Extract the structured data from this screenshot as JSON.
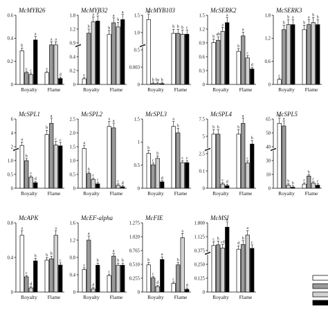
{
  "colors": {
    "s1": "#ffffff",
    "s2": "#9a9a9a",
    "s3": "#d2d2d2",
    "s4": "#000000",
    "stroke": "#111111"
  },
  "chart_data": [
    {
      "type": "bar",
      "title": "McMYB26",
      "categories": [
        "Royalty",
        "Flame"
      ],
      "ticks": [
        "0.6",
        "0.4",
        "0.2",
        "0"
      ],
      "ylim": [
        0,
        0.7
      ],
      "values": [
        [
          0.34,
          0.12,
          0.1,
          0.45
        ],
        [
          0.12,
          0.4,
          0.4,
          0.06
        ]
      ],
      "letters": [
        [
          "b",
          "c",
          "c",
          "a"
        ],
        [
          "c",
          "a",
          "a",
          "d"
        ]
      ]
    },
    {
      "type": "bar",
      "title": "McMYB32",
      "categories": [
        "Royalty",
        "Flame"
      ],
      "ticks": [
        "1.8",
        "1.2",
        "0.9",
        "0.4",
        "0.2",
        "0"
      ],
      "values": [
        [
          0.02,
          0.62,
          1.25,
          1.3
        ],
        [
          0.55,
          1.2,
          0.97,
          1.38
        ]
      ],
      "letters": [
        [
          "c",
          "b",
          "a",
          "a"
        ],
        [
          "b",
          "a",
          "b",
          "a"
        ]
      ]
    },
    {
      "type": "bar",
      "title": "McMYB103",
      "categories": [
        "Royalty",
        "Flame"
      ],
      "ticks": [
        "1.5",
        "1.0",
        "0.5",
        "0.003",
        "0"
      ],
      "values": [
        [
          1.35,
          0.0012,
          0.0008,
          0.0011
        ],
        [
          0.6,
          0.6,
          0.55,
          0.55
        ]
      ],
      "letters": [
        [
          "a",
          "b",
          "bc",
          "b"
        ],
        [
          "b",
          "b",
          "b",
          "c"
        ]
      ]
    },
    {
      "type": "bar",
      "title": "McSERK2",
      "categories": [
        "Royalty",
        "Flame"
      ],
      "ticks": [
        "1.5",
        "1.2",
        "0.9",
        "0.6",
        "0.3",
        "0"
      ],
      "values": [
        [
          0.95,
          1.0,
          1.2,
          1.4
        ],
        [
          0.75,
          1.1,
          0.6,
          0.35
        ]
      ],
      "letters": [
        [
          "b",
          "ab",
          "a",
          "a"
        ],
        [
          "b",
          "a",
          "c",
          "d"
        ]
      ]
    },
    {
      "type": "bar",
      "title": "McSERK3",
      "categories": [
        "Royalty",
        "Flame"
      ],
      "ticks": [
        "1.8",
        "1.2",
        "0.6",
        "0"
      ],
      "values": [
        [
          0.05,
          0.55,
          0.6,
          0.6
        ],
        [
          0.55,
          0.6,
          0.62,
          0.6
        ]
      ],
      "letters": [
        [
          "c",
          "b",
          "b",
          "a"
        ],
        [
          "b",
          "a",
          "b",
          "b"
        ]
      ]
    },
    {
      "type": "bar",
      "title": "McSPL1",
      "categories": [
        "Royalty",
        "Flame"
      ],
      "ticks": [
        "6",
        "4",
        "2",
        "1.0",
        "0.5",
        "0"
      ],
      "values": [
        [
          0.45,
          0.3,
          0.12,
          0.06
        ],
        [
          2.3,
          4.2,
          0.52,
          0.38
        ]
      ],
      "letters": [
        [
          "a",
          "b",
          "c",
          "d"
        ],
        [
          "b",
          "a",
          "c",
          "c"
        ]
      ]
    },
    {
      "type": "bar",
      "title": "McSPL2",
      "categories": [
        "Royalty",
        "Flame"
      ],
      "ticks": [
        "2.5",
        "2.0",
        "1.5",
        "1.0",
        "0.5",
        "0"
      ],
      "values": [
        [
          1.35,
          0.5,
          0.3,
          0.15
        ],
        [
          2.1,
          2.05,
          0.1,
          0.05
        ]
      ],
      "letters": [
        [
          "a",
          "b",
          "c",
          "c"
        ],
        [
          "a",
          "a",
          "c",
          "d"
        ]
      ]
    },
    {
      "type": "bar",
      "title": "McSPL3",
      "categories": [
        "Royalty",
        "Flame"
      ],
      "ticks": [
        "1.5",
        "1",
        "0.5",
        "0"
      ],
      "values": [
        [
          0.82,
          0.55,
          0.7,
          0.15
        ],
        [
          1.45,
          1.3,
          0.6,
          0.6
        ]
      ],
      "letters": [
        [
          "b",
          "c",
          "b",
          "d"
        ],
        [
          "a",
          "b",
          "c",
          "c"
        ]
      ]
    },
    {
      "type": "bar",
      "title": "McSPL4",
      "categories": [
        "Royalty",
        "Flame"
      ],
      "ticks": [
        "7.5",
        "5",
        "2.5",
        "0.1",
        "0"
      ],
      "values": [
        [
          2.6,
          2.6,
          0.05,
          0.03
        ],
        [
          2.6,
          4.6,
          0.3,
          0.75
        ]
      ],
      "letters": [
        [
          "b",
          "b",
          "c",
          "d"
        ],
        [
          "b",
          "a",
          "c",
          "b"
        ]
      ]
    },
    {
      "type": "bar",
      "title": "McSPL5",
      "categories": [
        "Royalty",
        "Flame"
      ],
      "ticks": [
        "65",
        "50",
        "40",
        "30",
        "10",
        "0"
      ],
      "values": [
        [
          38,
          34,
          0.3,
          0.1
        ],
        [
          0.4,
          1.2,
          0.5,
          0.3
        ]
      ],
      "letters": [
        [
          "a",
          "a",
          "b",
          "b"
        ],
        [
          "c",
          "b",
          "c",
          "c"
        ]
      ]
    },
    {
      "type": "bar",
      "title": "McAPK",
      "categories": [
        "Royalty",
        "Flame"
      ],
      "ticks": [
        "0.8",
        "0.4",
        "0"
      ],
      "ylim": [
        0,
        1.0
      ],
      "values": [
        [
          0.82,
          0.22,
          0.06,
          0.45
        ],
        [
          0.46,
          0.48,
          0.82,
          0.39
        ]
      ],
      "letters": [
        [
          "a",
          "c",
          "d",
          "b"
        ],
        [
          "b",
          "b",
          "a",
          "c"
        ]
      ]
    },
    {
      "type": "bar",
      "title": "McEF-alpha",
      "categories": [
        "Royalty",
        "Flame"
      ],
      "ticks": [
        "1.6",
        "1.2",
        "0.8",
        "0.4",
        "0"
      ],
      "ylim": [
        0,
        1.6
      ],
      "values": [
        [
          0.52,
          1.2,
          0.07,
          0.62
        ],
        [
          0.38,
          0.83,
          0.62,
          0.62
        ]
      ],
      "letters": [
        [
          "c",
          "a",
          "d",
          "b"
        ],
        [
          "c",
          "a",
          "b",
          "b"
        ]
      ]
    },
    {
      "type": "bar",
      "title": "McFIE",
      "categories": [
        "Royalty",
        "Flame"
      ],
      "ticks": [
        "1.275",
        "1.020",
        "0.765",
        "0.510",
        "0.255",
        "0"
      ],
      "ylim": [
        0,
        1.275
      ],
      "values": [
        [
          0.5,
          0.26,
          0.1,
          0.6
        ],
        [
          0.16,
          0.5,
          1.0,
          0.05
        ]
      ],
      "letters": [
        [
          "b",
          "c",
          "d",
          "a"
        ],
        [
          "c",
          "b",
          "a",
          "d"
        ]
      ]
    },
    {
      "type": "bar",
      "title": "McMSI",
      "categories": [
        "Royalty",
        "Flame"
      ],
      "ticks": [
        "1.800",
        "1.125",
        "0.375",
        "0.250",
        "0.125",
        "0"
      ],
      "values": [
        [
          0.36,
          0.4,
          0.22,
          1.4
        ],
        [
          0.15,
          0.42,
          0.95,
          0.2
        ]
      ],
      "letters": [
        [
          "c",
          "b",
          "cd",
          "a"
        ],
        [
          "d",
          "b",
          "a",
          "c"
        ]
      ]
    }
  ]
}
